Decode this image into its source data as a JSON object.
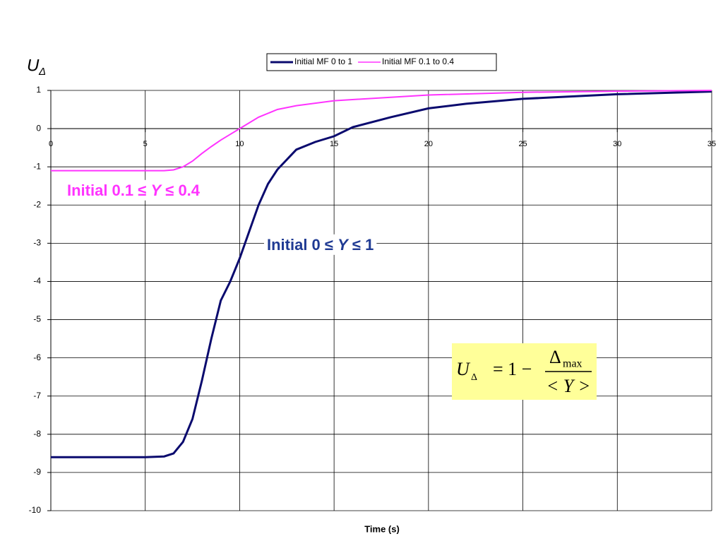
{
  "chart_data": {
    "type": "line",
    "ylabel": "U",
    "ylabel_sub": "Δ",
    "xlabel": "Time (s)",
    "xlim": [
      0,
      35
    ],
    "xticks": [
      0,
      5,
      10,
      15,
      20,
      25,
      30,
      35
    ],
    "ylim": [
      -10,
      1
    ],
    "yticks": [
      -10,
      -9,
      -8,
      -7,
      -6,
      -5,
      -4,
      -3,
      -2,
      -1,
      0,
      1
    ],
    "grid": true,
    "legend": "top",
    "series": [
      {
        "name": "Initial MF 0 to 1",
        "color": "#0a0a6e",
        "x": [
          0,
          5,
          6,
          6.5,
          7,
          7.5,
          8,
          8.5,
          9,
          9.5,
          10,
          10.5,
          11,
          11.5,
          12,
          13,
          14,
          15,
          16,
          18,
          20,
          22,
          25,
          30,
          35
        ],
        "values": [
          -8.6,
          -8.6,
          -8.58,
          -8.5,
          -8.2,
          -7.6,
          -6.6,
          -5.5,
          -4.5,
          -4.0,
          -3.4,
          -2.7,
          -2.0,
          -1.45,
          -1.07,
          -0.55,
          -0.35,
          -0.2,
          0.04,
          0.3,
          0.53,
          0.65,
          0.78,
          0.9,
          0.97
        ]
      },
      {
        "name": "Initial MF 0.1 to 0.4",
        "color": "#ff33ff",
        "x": [
          0,
          5,
          6,
          6.5,
          7,
          7.5,
          8,
          8.5,
          9,
          9.5,
          10,
          11,
          12,
          13,
          15,
          20,
          25,
          30,
          35
        ],
        "values": [
          -1.1,
          -1.1,
          -1.1,
          -1.08,
          -1.0,
          -0.85,
          -0.65,
          -0.47,
          -0.3,
          -0.15,
          0.0,
          0.3,
          0.5,
          0.6,
          0.73,
          0.88,
          0.95,
          0.98,
          1.0
        ]
      }
    ],
    "annotations": [
      {
        "parts": [
          "Initial 0.1 ≤ ",
          "Y",
          " ≤ 0.4"
        ],
        "color": "#ff33ff"
      },
      {
        "parts": [
          "Initial 0 ≤ ",
          "Y",
          " ≤ 1"
        ],
        "color": "#1f3a93"
      }
    ],
    "formula": {
      "lhs": "U",
      "lhs_sub": "Δ",
      "eq": "=  1 −",
      "numerator": "Δ",
      "numerator_sub": "max",
      "denominator": "< Y >",
      "background": "#ffff99"
    }
  }
}
